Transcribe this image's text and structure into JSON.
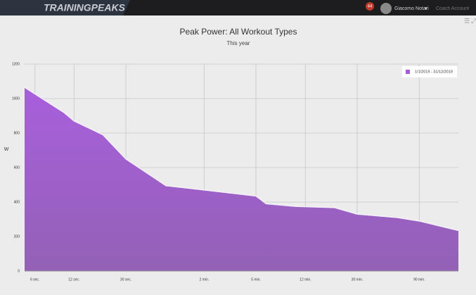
{
  "header": {
    "logo": "TRAININGPEAKS",
    "notifications": "44",
    "user": "Giacomo Notari",
    "account": "Coach Account"
  },
  "chart_data": {
    "type": "area",
    "title": "Peak Power: All Workout Types",
    "subtitle": "This year",
    "y_label": "W",
    "x": [
      5,
      10,
      12,
      20,
      30,
      61,
      120,
      300,
      359,
      605,
      1200,
      1800,
      3670,
      5400,
      10800
    ],
    "series": [
      {
        "name": "1/1/2019 - 31/12/2019",
        "color": "#a25ed6",
        "values": [
          1065,
          920,
          870,
          790,
          650,
          495,
          470,
          435,
          390,
          375,
          368,
          330,
          310,
          290,
          235
        ]
      }
    ],
    "xscale": "log",
    "xlim": [
      5,
      10800
    ],
    "xticks": [
      {
        "value": 6,
        "label": "6 sec."
      },
      {
        "value": 12,
        "label": "12 sec."
      },
      {
        "value": 30,
        "label": "30 sec."
      },
      {
        "value": 120,
        "label": "2 min."
      },
      {
        "value": 300,
        "label": "5 min."
      },
      {
        "value": 720,
        "label": "12 min."
      },
      {
        "value": 1800,
        "label": "30 min."
      },
      {
        "value": 5400,
        "label": "90 min."
      }
    ],
    "ylim": [
      0,
      1200
    ],
    "yticks": [
      0,
      200,
      400,
      600,
      800,
      1000,
      1200
    ],
    "grid": true,
    "legend": "top-right"
  }
}
